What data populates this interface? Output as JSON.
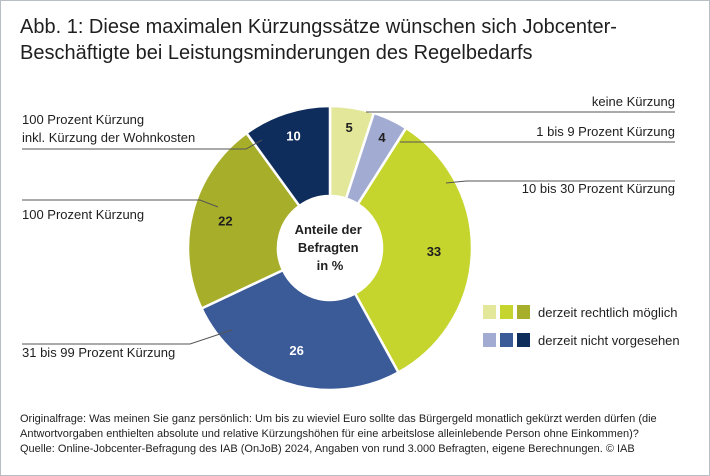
{
  "title": {
    "line1": "Abb. 1: Diese maximalen Kürzungssätze wünschen sich Jobcenter-",
    "line2": "Beschäftigte bei Leistungsminderungen des Regelbedarfs"
  },
  "chart_data": {
    "type": "pie",
    "variant": "donut",
    "center_label": [
      "Anteile der",
      "Befragten",
      "in %"
    ],
    "slices": [
      {
        "label": "keine Kürzung",
        "value": 5,
        "color": "#e3e79a",
        "value_color": "#1f1f1f",
        "group": "possible"
      },
      {
        "label": "1 bis 9 Prozent Kürzung",
        "value": 4,
        "color": "#a2abd1",
        "value_color": "#1f1f1f",
        "group": "not_planned"
      },
      {
        "label": "10 bis 30 Prozent Kürzung",
        "value": 33,
        "color": "#c6d42e",
        "value_color": "#1f1f1f",
        "group": "possible"
      },
      {
        "label": "31 bis 99 Prozent Kürzung",
        "value": 26,
        "color": "#3a5a98",
        "value_color": "#ffffff",
        "group": "not_planned"
      },
      {
        "label": "100 Prozent Kürzung",
        "value": 22,
        "color": "#a7ae2a",
        "value_color": "#1f1f1f",
        "group": "possible"
      },
      {
        "label_lines": [
          "100 Prozent Kürzung",
          "inkl. Kürzung der Wohnkosten"
        ],
        "value": 10,
        "color": "#0f2d5c",
        "value_color": "#ffffff",
        "group": "not_planned"
      }
    ],
    "legend": [
      {
        "label": "derzeit rechtlich möglich",
        "colors": [
          "#e3e79a",
          "#c6d42e",
          "#a7ae2a"
        ]
      },
      {
        "label": "derzeit nicht vorgesehen",
        "colors": [
          "#a2abd1",
          "#3a5a98",
          "#0f2d5c"
        ]
      }
    ]
  },
  "footnote": {
    "line1": "Originalfrage: Was meinen Sie ganz persönlich: Um bis zu wieviel Euro sollte das Bürgergeld monatlich gekürzt werden dürfen (die",
    "line2": "Antwortvorgaben enthielten absolute und relative Kürzungshöhen für eine arbeitslose alleinlebende Person ohne Einkommen)?",
    "line3": "Quelle: Online-Jobcenter-Befragung des IAB (OnJoB) 2024, Angaben von rund 3.000 Befragten, eigene Berechnungen. © IAB"
  }
}
